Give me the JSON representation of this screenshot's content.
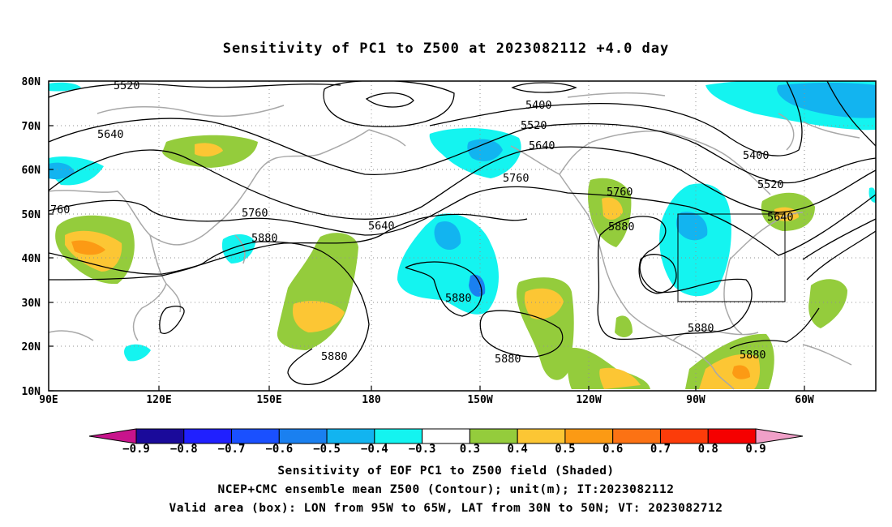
{
  "title": "Sensitivity of PC1 to Z500 at 2023082112 +4.0 day",
  "lat_labels": [
    "80N",
    "70N",
    "60N",
    "50N",
    "40N",
    "30N",
    "20N",
    "10N"
  ],
  "lon_labels": [
    "90E",
    "120E",
    "150E",
    "180",
    "150W",
    "120W",
    "90W",
    "60W"
  ],
  "contours": [
    {
      "label": "5520"
    },
    {
      "label": "5400"
    },
    {
      "label": "5520"
    },
    {
      "label": "5640"
    },
    {
      "label": "5640"
    },
    {
      "label": "5760"
    },
    {
      "label": "5400"
    },
    {
      "label": "5520"
    },
    {
      "label": "760"
    },
    {
      "label": "5760"
    },
    {
      "label": "5640"
    },
    {
      "label": "5760"
    },
    {
      "label": "5640"
    },
    {
      "label": "5880"
    },
    {
      "label": "5880"
    },
    {
      "label": "5880"
    },
    {
      "label": "5880"
    },
    {
      "label": "5880"
    },
    {
      "label": "5880"
    },
    {
      "label": "5880"
    }
  ],
  "colorbar": {
    "labels": [
      "−0.9",
      "−0.8",
      "−0.7",
      "−0.6",
      "−0.5",
      "−0.4",
      "−0.3",
      "0.3",
      "0.4",
      "0.5",
      "0.6",
      "0.7",
      "0.8",
      "0.9"
    ],
    "colors": [
      "#1a0a9a",
      "#2020ff",
      "#1a50ff",
      "#1a80f0",
      "#12b4f0",
      "#14f4f0",
      "#ffffff",
      "#94cc3c",
      "#fcc634",
      "#fc9a14",
      "#fc7214",
      "#fc3c0a",
      "#f50000"
    ],
    "low_extend_color": "#c8148c",
    "high_extend_color": "#f0a0c8"
  },
  "box_label": "Valid area (box): LON from 95W to 65W, LAT from 30N to 50N",
  "captions": [
    "Sensitivity of EOF PC1 to Z500 field (Shaded)",
    "NCEP+CMC ensemble mean Z500 (Contour); unit(m); IT:2023082112",
    "Valid area (box): LON from 95W to 65W, LAT from 30N to 50N; VT: 2023082712"
  ]
}
